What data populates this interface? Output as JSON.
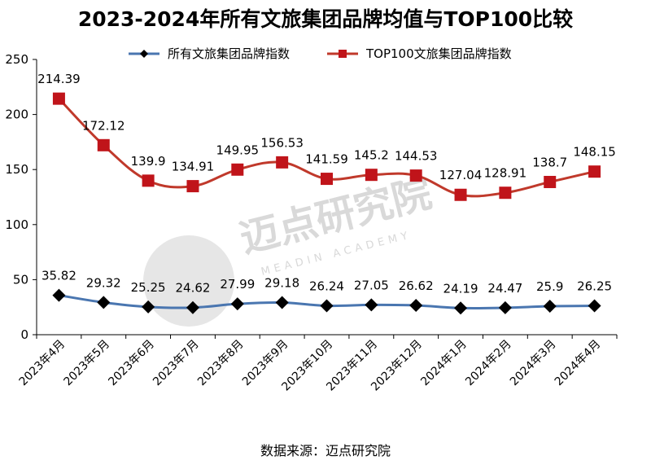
{
  "title": "2023-2024年所有文旅集团品牌均值与TOP100比较",
  "source": "数据来源：迈点研究院",
  "watermark": {
    "main": "迈点研究院",
    "sub": "MEADIN ACADEMY"
  },
  "colors": {
    "series1": "#4a76b0",
    "series2": "#c0392b",
    "marker1": "#000000",
    "marker2": "#c0141a"
  },
  "chart_data": {
    "type": "line",
    "categories": [
      "2023年4月",
      "2023年5月",
      "2023年6月",
      "2023年7月",
      "2023年8月",
      "2023年9月",
      "2023年10月",
      "2023年11月",
      "2023年12月",
      "2024年1月",
      "2024年2月",
      "2024年3月",
      "2024年4月"
    ],
    "series": [
      {
        "name": "所有文旅集团品牌指数",
        "marker": "diamond",
        "values": [
          35.82,
          29.32,
          25.25,
          24.62,
          27.99,
          29.18,
          26.24,
          27.05,
          26.62,
          24.19,
          24.47,
          25.9,
          26.25
        ],
        "labels": [
          "35.82",
          "29.32",
          "25.25",
          "24.62",
          "27.99",
          "29.18",
          "26.24",
          "27.05",
          "26.62",
          "24.19",
          "24.47",
          "25.9",
          "26.25"
        ]
      },
      {
        "name": "TOP100文旅集团品牌指数",
        "marker": "square",
        "values": [
          214.39,
          172.12,
          139.9,
          134.91,
          149.95,
          156.53,
          141.59,
          145.2,
          144.53,
          127.04,
          128.91,
          138.7,
          148.15
        ],
        "labels": [
          "214.39",
          "172.12",
          "139.9",
          "134.91",
          "149.95",
          "156.53",
          "141.59",
          "145.2",
          "144.53",
          "127.04",
          "128.91",
          "138.7",
          "148.15"
        ]
      }
    ],
    "ylim": [
      0,
      250
    ],
    "yticks": [
      "0",
      "50",
      "100",
      "150",
      "200",
      "250"
    ],
    "grid": false,
    "legend": "top"
  }
}
